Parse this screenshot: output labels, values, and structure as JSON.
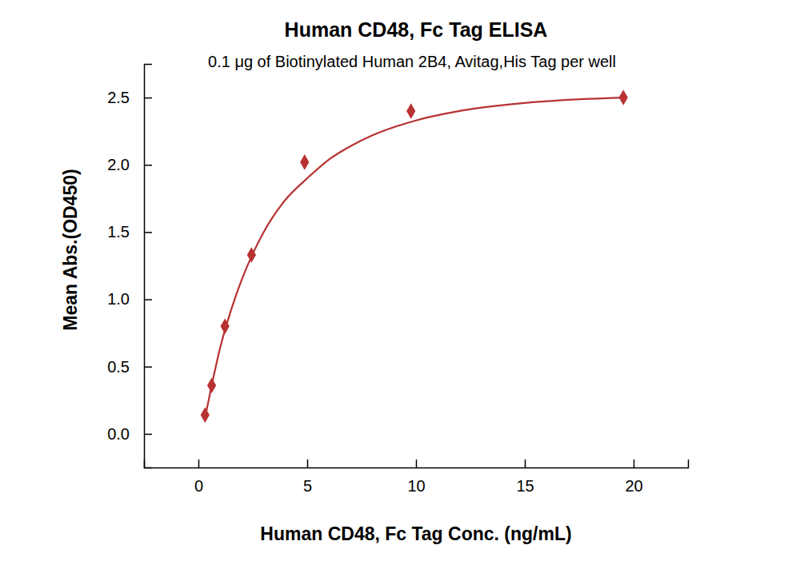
{
  "chart_data": {
    "type": "scatter",
    "title": "Human CD48, Fc Tag ELISA",
    "subtitle": "0.1 μg of Biotinylated Human 2B4, Avitag,His Tag per well",
    "x_label": "Human CD48, Fc Tag Conc. (ng/mL)",
    "y_label": "Mean Abs.(OD450)",
    "xlim": [
      -2.5,
      22.5
    ],
    "xticks": [
      0,
      5,
      10,
      15,
      20
    ],
    "ylim": [
      -0.25,
      2.75
    ],
    "yticks": [
      {
        "value": 0,
        "label": "0.0"
      },
      {
        "value": 0.5,
        "label": "0.5"
      },
      {
        "value": 1,
        "label": "1.0"
      },
      {
        "value": 1.5,
        "label": "1.5"
      },
      {
        "value": 2,
        "label": "2.0"
      },
      {
        "value": 2.5,
        "label": "2.5"
      }
    ],
    "grid": false,
    "series": [
      {
        "type": "scatter",
        "marker": "diamond",
        "color": "#b83232",
        "x": [
          0.305,
          0.61,
          1.22,
          2.44,
          4.88,
          9.77,
          19.53
        ],
        "values": [
          0.14,
          0.36,
          0.8,
          1.33,
          2.02,
          2.4,
          2.5
        ]
      },
      {
        "type": "line",
        "line_style": "solid",
        "color": "#b83232",
        "x": [
          0.305,
          0.61,
          1,
          1.5,
          2,
          2.5,
          3,
          4,
          5,
          6,
          7,
          8,
          10,
          12,
          15,
          19.53
        ],
        "values": [
          0.12,
          0.36,
          0.64,
          0.92,
          1.15,
          1.34,
          1.5,
          1.74,
          1.9,
          2.04,
          2.14,
          2.22,
          2.33,
          2.4,
          2.46,
          2.5
        ]
      }
    ]
  }
}
